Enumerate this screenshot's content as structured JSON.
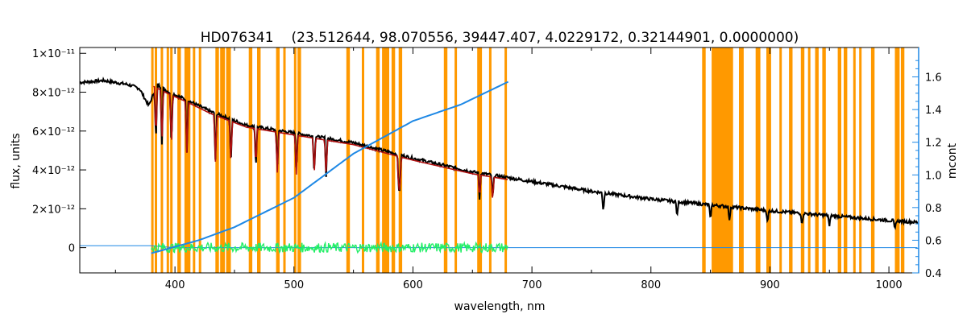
{
  "chart_data": {
    "type": "line",
    "title_star": "HD076341",
    "title_params": "(23.512644, 98.070556, 39447.407, 4.0229172, 0.32144901, 0.0000000)",
    "xlabel": "wavelength, nm",
    "ylabel_left": "flux, units",
    "ylabel_right": "mcont",
    "xlim": [
      320,
      1025
    ],
    "ylim_left": [
      -1.3e-12,
      1.03e-11
    ],
    "ylim_right": [
      0.4,
      1.78
    ],
    "x_ticks": [
      400,
      500,
      600,
      700,
      800,
      900,
      1000
    ],
    "y_left_ticks": [
      {
        "value": 0,
        "label": "0"
      },
      {
        "value": 2e-12,
        "label": "2×10⁻¹²"
      },
      {
        "value": 4e-12,
        "label": "4×10⁻¹²"
      },
      {
        "value": 6e-12,
        "label": "6×10⁻¹²"
      },
      {
        "value": 8e-12,
        "label": "8×10⁻¹²"
      },
      {
        "value": 1e-11,
        "label": "1×10⁻¹¹"
      }
    ],
    "y_right_ticks": [
      0.4,
      0.6,
      0.8,
      1.0,
      1.2,
      1.4,
      1.6
    ],
    "colors": {
      "observed": "#000000",
      "model": "#b01010",
      "residual": "#22ee66",
      "mcont": "#1e88e5",
      "masks": "#ff9900",
      "secondary": "#ffdd00"
    },
    "masked_regions": [
      [
        380,
        382
      ],
      [
        383,
        385
      ],
      [
        388,
        390
      ],
      [
        393,
        395
      ],
      [
        396,
        398
      ],
      [
        402,
        405
      ],
      [
        408,
        413
      ],
      [
        415,
        417
      ],
      [
        420,
        422
      ],
      [
        434,
        437
      ],
      [
        438,
        442
      ],
      [
        443,
        447
      ],
      [
        462,
        465
      ],
      [
        469,
        472
      ],
      [
        485,
        488
      ],
      [
        491,
        493
      ],
      [
        500,
        502
      ],
      [
        503,
        506
      ],
      [
        544,
        547
      ],
      [
        557,
        559
      ],
      [
        569,
        572
      ],
      [
        574,
        580
      ],
      [
        582,
        585
      ],
      [
        588,
        591
      ],
      [
        626,
        629
      ],
      [
        635,
        637
      ],
      [
        654,
        658
      ],
      [
        664,
        666
      ],
      [
        677,
        679
      ],
      [
        843,
        846
      ],
      [
        851,
        869
      ],
      [
        874,
        878
      ],
      [
        888,
        892
      ],
      [
        897,
        901
      ],
      [
        908,
        910
      ],
      [
        916,
        919
      ],
      [
        926,
        929
      ],
      [
        932,
        934
      ],
      [
        938,
        941
      ],
      [
        944,
        947
      ],
      [
        957,
        960
      ],
      [
        962,
        965
      ],
      [
        970,
        972
      ],
      [
        975,
        977
      ],
      [
        985,
        988
      ],
      [
        1005,
        1009
      ],
      [
        1010,
        1013
      ]
    ],
    "series": [
      {
        "x": [
          320,
          340,
          360,
          370,
          378,
          385,
          395,
          410,
          430,
          460,
          500,
          550,
          600,
          650,
          680,
          700,
          750,
          800,
          850,
          900,
          950,
          1000,
          1025
        ],
        "y": [
          8.5e-12,
          8.6e-12,
          8.4e-12,
          8.2e-12,
          7.3e-12,
          8.4e-12,
          8e-12,
          7.6e-12,
          7e-12,
          6.3e-12,
          5.9e-12,
          5.4e-12,
          4.6e-12,
          3.9e-12,
          3.6e-12,
          3.4e-12,
          2.9e-12,
          2.5e-12,
          2.2e-12,
          1.9e-12,
          1.65e-12,
          1.4e-12,
          1.3e-12
        ]
      },
      {
        "x": [
          382,
          395,
          410,
          430,
          460,
          500,
          550,
          600,
          650,
          680
        ],
        "y": [
          8.3e-12,
          7.9e-12,
          7.5e-12,
          6.9e-12,
          6.2e-12,
          5.8e-12,
          5.3e-12,
          4.5e-12,
          3.8e-12,
          3.5e-12
        ]
      },
      {
        "x": [
          320,
          380,
          400,
          500,
          600,
          700,
          800,
          900,
          1025
        ],
        "y": [
          1e-13,
          1e-13,
          0,
          0,
          0,
          0,
          0,
          0,
          0
        ]
      },
      {
        "x": [
          380,
          400,
          450,
          500,
          550,
          600,
          680
        ],
        "y": [
          0,
          0,
          0,
          0,
          0,
          0,
          0
        ]
      },
      {
        "x": [
          380,
          400,
          420,
          450,
          500,
          550,
          600,
          640,
          660,
          680
        ],
        "y": [
          0.52,
          0.56,
          0.6,
          0.68,
          0.86,
          1.13,
          1.33,
          1.43,
          1.5,
          1.57
        ]
      }
    ],
    "absorption_lines": [
      384,
      389,
      397,
      410,
      434,
      447,
      468,
      486,
      502,
      517,
      527,
      588,
      589,
      656,
      667,
      760,
      822,
      850,
      866,
      898,
      927,
      950,
      1005
    ]
  }
}
